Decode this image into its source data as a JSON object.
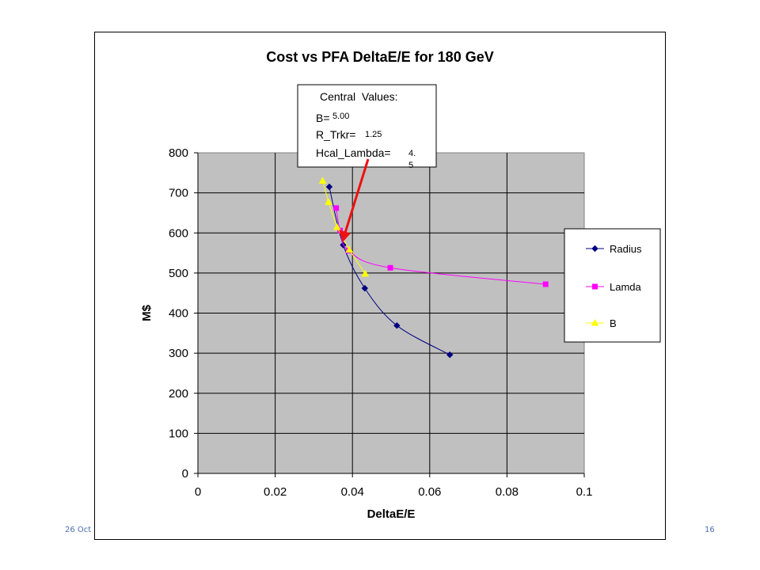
{
  "footer": {
    "date_text": "26 Oct",
    "page_number": "16"
  },
  "annotation": {
    "heading": "Central  Values:",
    "lines": [
      {
        "label": "B=",
        "value": "5.00"
      },
      {
        "label": "R_Trkr=",
        "value": "1.25"
      },
      {
        "label": "Hcal_Lambda=",
        "value": "4.",
        "value2": "5"
      }
    ],
    "arrow_color": "#ee1111"
  },
  "chart_data": {
    "type": "scatter",
    "title": "Cost vs PFA  DeltaE/E for 180 GeV",
    "xlabel": "DeltaE/E",
    "ylabel": "M$",
    "xlim": [
      0,
      0.1
    ],
    "ylim": [
      0,
      800
    ],
    "xticks": [
      "0",
      "0.02",
      "0.04",
      "0.06",
      "0.08",
      "0.1"
    ],
    "yticks": [
      "0",
      "100",
      "200",
      "300",
      "400",
      "500",
      "600",
      "700",
      "800"
    ],
    "grid": true,
    "legend_position": "right",
    "plot_background": "#c0c0c0",
    "series": [
      {
        "name": "Radius",
        "color": "#000080",
        "marker": "diamond",
        "smooth": true,
        "x": [
          0.034,
          0.0376,
          0.0432,
          0.0515,
          0.0652
        ],
        "y": [
          715,
          570,
          462,
          369,
          296
        ]
      },
      {
        "name": "Lamda",
        "color": "#ff00ff",
        "marker": "square",
        "smooth": true,
        "x": [
          0.0358,
          0.0368,
          0.039,
          0.0498,
          0.09
        ],
        "y": [
          662,
          606,
          556,
          513,
          472
        ]
      },
      {
        "name": "B",
        "color": "#ffff00",
        "marker": "triangle",
        "smooth": false,
        "x": [
          0.0323,
          0.0338,
          0.036,
          0.0392,
          0.0433
        ],
        "y": [
          730,
          677,
          614,
          558,
          498
        ]
      }
    ]
  }
}
